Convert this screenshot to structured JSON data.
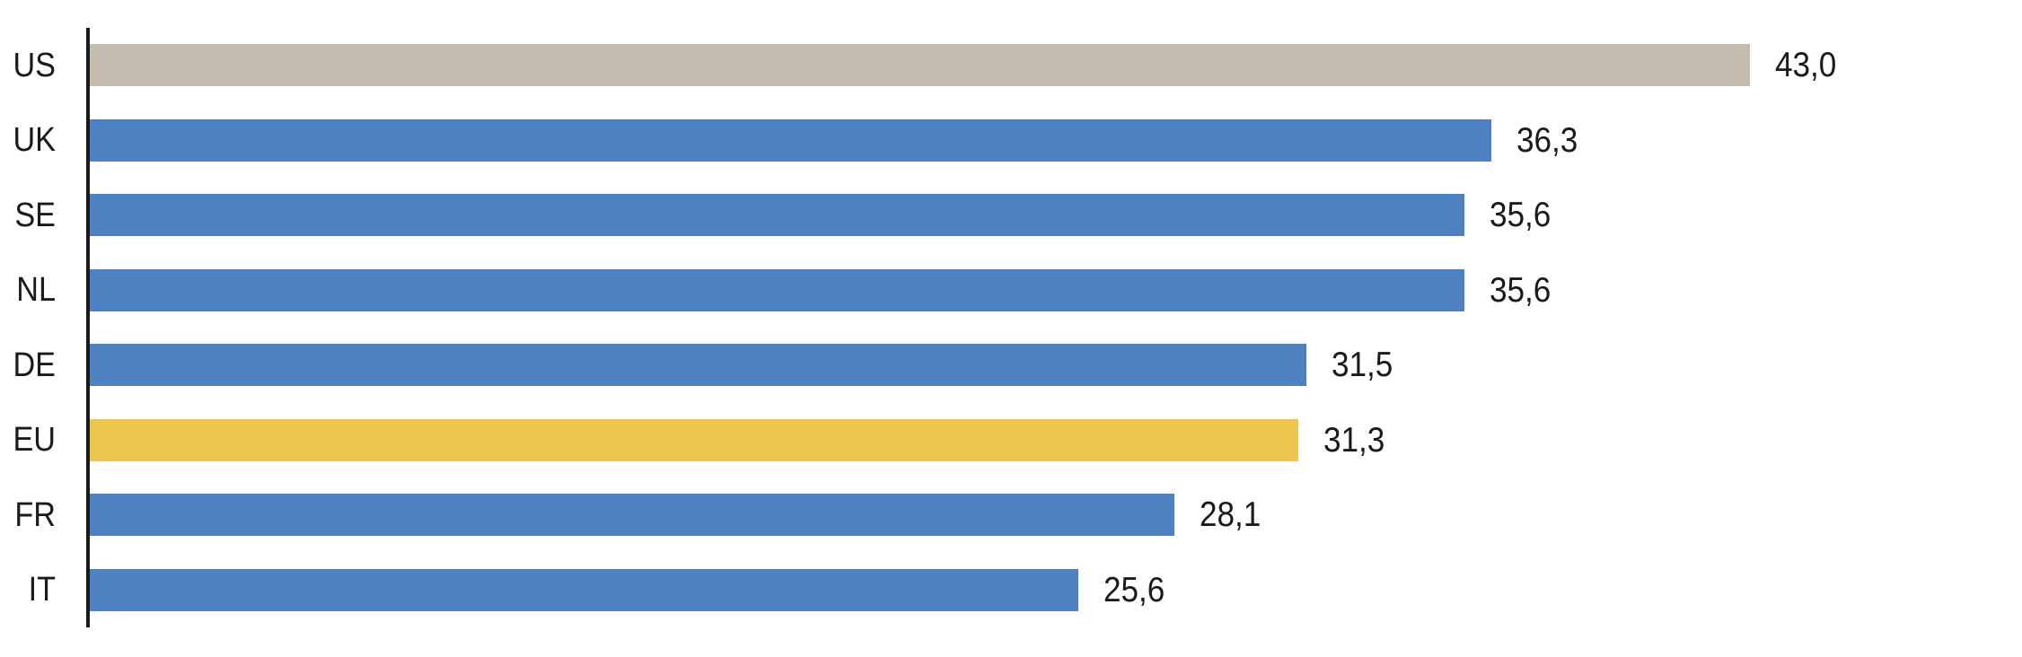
{
  "chart_data": {
    "type": "bar",
    "orientation": "horizontal",
    "title": "",
    "xlabel": "",
    "ylabel": "",
    "categories": [
      "US",
      "UK",
      "SE",
      "NL",
      "DE",
      "EU",
      "FR",
      "IT"
    ],
    "values": [
      43.0,
      36.3,
      35.6,
      35.6,
      31.5,
      31.3,
      28.1,
      25.6
    ],
    "value_labels": [
      "43,0",
      "36,3",
      "35,6",
      "35,6",
      "31,5",
      "31,3",
      "28,1",
      "25,6"
    ],
    "series": [
      {
        "name": "value",
        "values": [
          43.0,
          36.3,
          35.6,
          35.6,
          31.5,
          31.3,
          28.1,
          25.6
        ]
      }
    ],
    "bar_colors": [
      "#C4BDAF",
      "#4E81C2",
      "#4E81C2",
      "#4E81C2",
      "#4E81C2",
      "#ECC64F",
      "#4E81C2",
      "#4E81C2"
    ],
    "xlim": [
      0,
      50
    ],
    "grid": false,
    "legend": "none",
    "value_label_position": "right-of-bar",
    "decimal_separator": ","
  },
  "colors": {
    "bar_default": "#4E81C2",
    "bar_highlight_us": "#C4BDAF",
    "bar_highlight_eu": "#ECC64F",
    "axis": "#1A1A1A",
    "text": "#1A1A1A",
    "background": "#FFFFFF"
  }
}
